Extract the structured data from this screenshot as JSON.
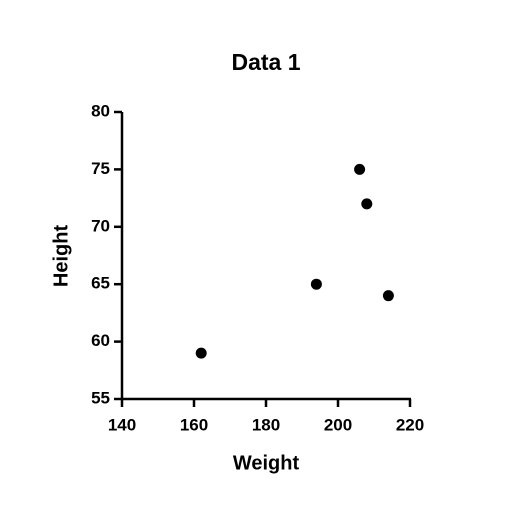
{
  "chart_data": {
    "type": "scatter",
    "title": "Data 1",
    "x_label": "Weight",
    "y_label": "Height",
    "x": [
      162,
      194,
      206,
      208,
      214
    ],
    "values": [
      59,
      65,
      75,
      72,
      64
    ],
    "color": "#000000",
    "xlim": [
      140,
      220
    ],
    "xticks": [
      140,
      160,
      180,
      200,
      220
    ],
    "ylim": [
      55,
      80
    ],
    "yticks": [
      55,
      60,
      65,
      70,
      75,
      80
    ],
    "grid": false
  }
}
